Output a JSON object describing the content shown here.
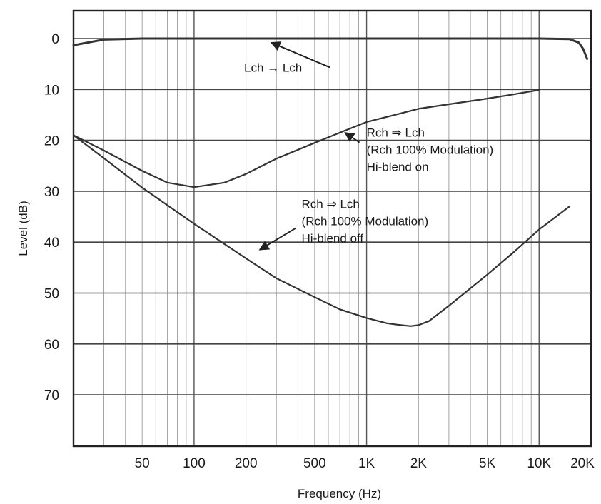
{
  "chart_data": {
    "type": "line",
    "xscale": "log",
    "yscale": "linear",
    "y_inverted": true,
    "xlabel": "Frequency (Hz)",
    "ylabel": "Level (dB)",
    "xlim": [
      20,
      20000
    ],
    "ylim": [
      -5,
      80
    ],
    "x_tick_values": [
      50,
      100,
      200,
      500,
      1000,
      2000,
      5000,
      10000,
      20000
    ],
    "x_tick_labels": [
      "50",
      "100",
      "200",
      "500",
      "1K",
      "2K",
      "5K",
      "10K",
      "20K"
    ],
    "y_tick_values": [
      0,
      10,
      20,
      30,
      40,
      50,
      60,
      70
    ],
    "y_tick_labels": [
      "0",
      "10",
      "20",
      "30",
      "40",
      "50",
      "60",
      "70"
    ],
    "grid": true,
    "line_color": "#333333",
    "series": [
      {
        "x": [
          20,
          30,
          50,
          100,
          300,
          1000,
          5000,
          10000,
          15000,
          17000,
          18000,
          19000
        ],
        "y": [
          1.3,
          0.2,
          0,
          0,
          0,
          0,
          0,
          0,
          0.1,
          0.8,
          2,
          4
        ]
      },
      {
        "x": [
          20,
          30,
          50,
          70,
          100,
          150,
          200,
          300,
          500,
          700,
          1000,
          1500,
          2000,
          3000,
          5000,
          7000,
          10000
        ],
        "y": [
          19,
          22,
          26,
          28.3,
          29.2,
          28.3,
          26.6,
          23.6,
          20.5,
          18.5,
          16.4,
          14.9,
          13.8,
          12.9,
          11.8,
          11.0,
          10.1
        ]
      },
      {
        "x": [
          20,
          30,
          50,
          100,
          200,
          300,
          500,
          700,
          1000,
          1300,
          1500,
          1800,
          2000,
          2300,
          3000,
          5000,
          7000,
          10000,
          15000
        ],
        "y": [
          19,
          23.5,
          29.3,
          36.4,
          43.2,
          47.1,
          50.8,
          53.2,
          54.9,
          55.9,
          56.2,
          56.5,
          56.3,
          55.5,
          52.5,
          46.4,
          42.2,
          37.5,
          33
        ]
      }
    ],
    "annotations": [
      {
        "lines": [
          "Lch → Lch"
        ],
        "text_at": [
          195,
          6.5
        ],
        "arrow_to": [
          280,
          0.8
        ]
      },
      {
        "lines": [
          "Rch ⇒ Lch",
          "(Rch 100% Modulation)",
          "Hi-blend on"
        ],
        "text_at": [
          1000,
          19.3
        ],
        "arrow_to": [
          750,
          18.5
        ]
      },
      {
        "lines": [
          "Rch ⇒ Lch",
          "(Rch 100% Modulation)",
          "Hi-blend off"
        ],
        "text_at": [
          420,
          33.3
        ],
        "arrow_to": [
          240,
          41.5
        ]
      }
    ]
  }
}
